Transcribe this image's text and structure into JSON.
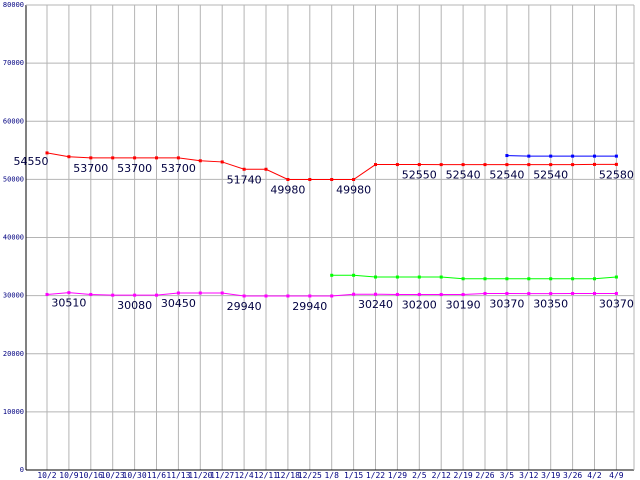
{
  "chart_data": {
    "type": "line",
    "ylim": [
      0,
      80000
    ],
    "yticks": [
      0,
      10000,
      20000,
      30000,
      40000,
      50000,
      60000,
      70000,
      80000
    ],
    "grid": true,
    "categories": [
      "10/2",
      "10/9",
      "10/16",
      "10/23",
      "10/30",
      "11/6",
      "11/13",
      "11/20",
      "11/27",
      "12/4",
      "12/11",
      "12/18",
      "12/25",
      "1/8",
      "1/15",
      "1/22",
      "1/29",
      "2/5",
      "2/12",
      "2/19",
      "2/26",
      "3/5",
      "3/12",
      "3/19",
      "3/26",
      "4/2",
      "4/9"
    ],
    "category_labels": [
      "10/2",
      "10/9",
      "10/16",
      "10/23",
      "10/30",
      "11/6",
      "11/13",
      "11/20",
      "11/27",
      "12/4",
      "12/11",
      "12/18",
      "12/25",
      "1/8",
      "1/15",
      "1/22",
      "1/29",
      "2/5",
      "2/12",
      "2/19",
      "2/26",
      "3/5",
      "3/12",
      "3/19",
      "3/26",
      "4/2",
      "4/9"
    ],
    "series": [
      {
        "color": "#ff0000",
        "values": [
          54550,
          53900,
          53700,
          53700,
          53700,
          53700,
          53700,
          53200,
          53000,
          51740,
          51740,
          49980,
          49980,
          49980,
          49980,
          52550,
          52550,
          52550,
          52540,
          52540,
          52540,
          52540,
          52540,
          52540,
          52540,
          52580,
          52580
        ]
      },
      {
        "color": "#0000ff",
        "values": [
          null,
          null,
          null,
          null,
          null,
          null,
          null,
          null,
          null,
          null,
          null,
          null,
          null,
          null,
          null,
          null,
          null,
          null,
          null,
          null,
          null,
          54100,
          54000,
          54000,
          54000,
          54000,
          54000
        ]
      },
      {
        "color": "#00ff00",
        "values": [
          null,
          null,
          null,
          null,
          null,
          null,
          null,
          null,
          null,
          null,
          null,
          null,
          null,
          33500,
          33500,
          33200,
          33200,
          33200,
          33200,
          32900,
          32900,
          32900,
          32900,
          32900,
          32900,
          32900,
          33200
        ]
      },
      {
        "color": "#ff00ff",
        "values": [
          30200,
          30510,
          30200,
          30080,
          30080,
          30080,
          30450,
          30450,
          30450,
          29940,
          29940,
          29940,
          29940,
          29940,
          30240,
          30240,
          30200,
          30200,
          30190,
          30190,
          30370,
          30370,
          30350,
          30350,
          30370,
          30370,
          30370
        ]
      }
    ],
    "data_labels": [
      {
        "i": 0,
        "v": "54550",
        "series": 0,
        "pos": "below-left"
      },
      {
        "i": 2,
        "v": "53700",
        "series": 0,
        "pos": "below"
      },
      {
        "i": 4,
        "v": "53700",
        "series": 0,
        "pos": "below"
      },
      {
        "i": 6,
        "v": "53700",
        "series": 0,
        "pos": "below"
      },
      {
        "i": 9,
        "v": "51740",
        "series": 0,
        "pos": "below"
      },
      {
        "i": 11,
        "v": "49980",
        "series": 0,
        "pos": "below"
      },
      {
        "i": 14,
        "v": "49980",
        "series": 0,
        "pos": "below"
      },
      {
        "i": 17,
        "v": "52550",
        "series": 0,
        "pos": "below"
      },
      {
        "i": 19,
        "v": "52540",
        "series": 0,
        "pos": "below"
      },
      {
        "i": 21,
        "v": "52540",
        "series": 0,
        "pos": "below"
      },
      {
        "i": 23,
        "v": "52540",
        "series": 0,
        "pos": "below"
      },
      {
        "i": 26,
        "v": "52580",
        "series": 0,
        "pos": "below"
      },
      {
        "i": 1,
        "v": "30510",
        "series": 3,
        "pos": "below"
      },
      {
        "i": 4,
        "v": "30080",
        "series": 3,
        "pos": "below"
      },
      {
        "i": 6,
        "v": "30450",
        "series": 3,
        "pos": "below"
      },
      {
        "i": 9,
        "v": "29940",
        "series": 3,
        "pos": "below"
      },
      {
        "i": 12,
        "v": "29940",
        "series": 3,
        "pos": "below"
      },
      {
        "i": 15,
        "v": "30240",
        "series": 3,
        "pos": "below"
      },
      {
        "i": 17,
        "v": "30200",
        "series": 3,
        "pos": "below"
      },
      {
        "i": 19,
        "v": "30190",
        "series": 3,
        "pos": "below"
      },
      {
        "i": 21,
        "v": "30370",
        "series": 3,
        "pos": "below"
      },
      {
        "i": 23,
        "v": "30350",
        "series": 3,
        "pos": "below"
      },
      {
        "i": 26,
        "v": "30370",
        "series": 3,
        "pos": "below"
      }
    ]
  }
}
